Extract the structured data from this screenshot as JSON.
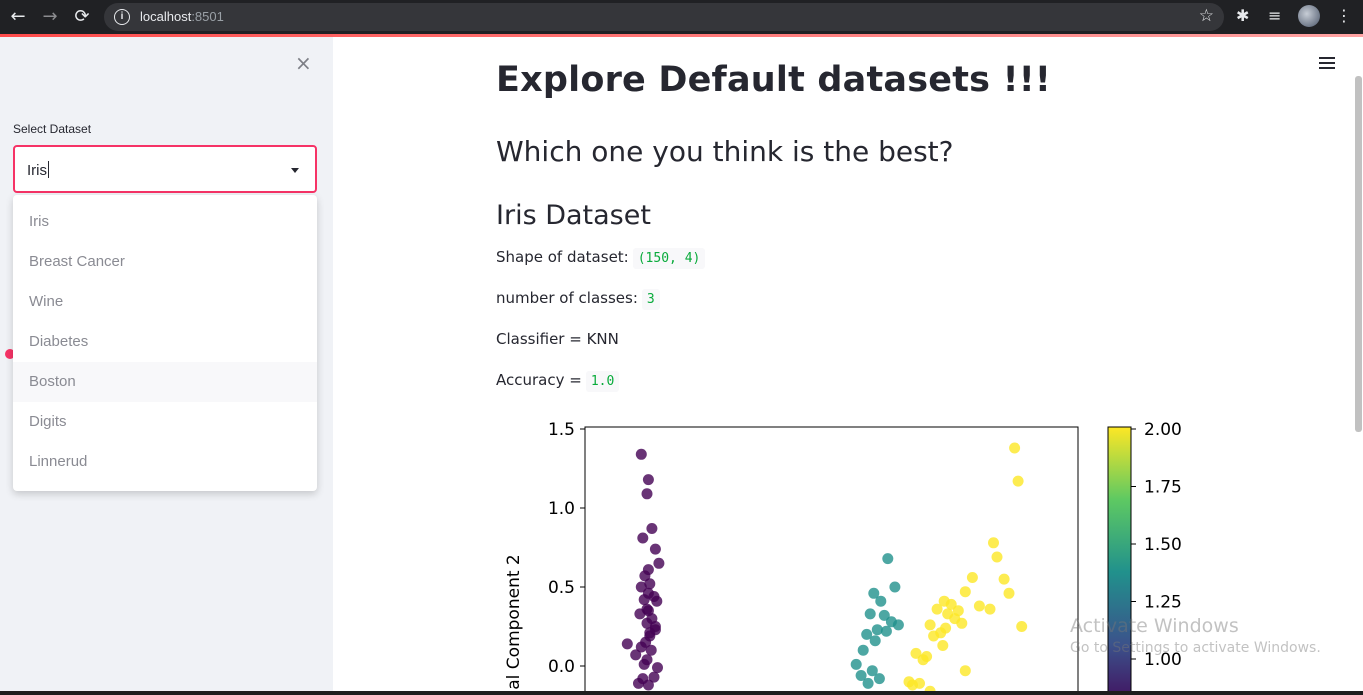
{
  "browser": {
    "url_host": "localhost",
    "url_port": ":8501"
  },
  "sidebar": {
    "close_label": "×",
    "select_label": "Select Dataset",
    "select_value": "Iris",
    "options": [
      "Iris",
      "Breast Cancer",
      "Wine",
      "Diabetes",
      "Boston",
      "Digits",
      "Linnerud"
    ]
  },
  "main": {
    "title": "Explore Default datasets !!!",
    "subtitle": "Which one you think is the best?",
    "dataset_header": "Iris Dataset",
    "shape_label": "Shape of dataset:",
    "shape_value": "(150, 4)",
    "classes_label": "number of classes:",
    "classes_value": "3",
    "classifier_text": "Classifier = KNN",
    "accuracy_label": "Accuracy =",
    "accuracy_value": "1.0"
  },
  "chart_data": {
    "type": "scatter",
    "ylabel": "al Component 2",
    "yticks": [
      "1.5",
      "1.0",
      "0.5",
      "0.0"
    ],
    "ylim": [
      -0.2,
      1.5
    ],
    "colorbar_ticks": [
      "2.00",
      "1.75",
      "1.50",
      "1.25",
      "1.00"
    ],
    "colorbar_range": [
      0,
      2
    ],
    "colormap": "viridis",
    "colors": {
      "class0": "#440154",
      "class1": "#21918c",
      "class2": "#fde725"
    },
    "series": [
      {
        "class": 0,
        "x": [
          -2.7,
          -2.6,
          -2.62,
          -2.55,
          -2.68,
          -2.5,
          -2.45,
          -2.6,
          -2.65,
          -2.58,
          -2.7,
          -2.52,
          -2.66,
          -2.72,
          -2.48,
          -2.6,
          -2.55,
          -2.62,
          -2.5,
          -2.58,
          -2.64,
          -2.7,
          -2.56,
          -2.9,
          -2.78,
          -2.62,
          -2.47,
          -2.68,
          -2.6,
          -2.52,
          -2.66,
          -2.74,
          -2.58,
          -2.62,
          -2.5,
          -2.6
        ],
        "y": [
          1.34,
          1.18,
          1.09,
          0.87,
          0.81,
          0.74,
          0.65,
          0.61,
          0.57,
          0.52,
          0.5,
          0.44,
          0.42,
          0.33,
          0.41,
          0.35,
          0.3,
          0.27,
          0.23,
          0.19,
          0.15,
          0.12,
          0.1,
          0.14,
          0.07,
          0.04,
          -0.01,
          -0.08,
          -0.12,
          -0.07,
          0.01,
          -0.11,
          0.21,
          0.36,
          0.25,
          0.46
        ]
      },
      {
        "class": 1,
        "x": [
          0.8,
          0.6,
          0.9,
          0.7,
          0.75,
          0.55,
          0.65,
          0.95,
          0.85,
          0.5,
          0.62,
          0.78,
          0.45,
          0.35,
          0.42,
          0.52,
          0.58,
          0.68
        ],
        "y": [
          0.68,
          0.46,
          0.5,
          0.41,
          0.32,
          0.33,
          0.23,
          0.26,
          0.28,
          0.2,
          0.16,
          0.22,
          0.1,
          0.01,
          -0.06,
          -0.11,
          -0.03,
          -0.08
        ]
      },
      {
        "class": 2,
        "x": [
          2.6,
          2.65,
          2.3,
          2.35,
          2.45,
          2.52,
          2.0,
          2.1,
          1.9,
          1.6,
          1.4,
          1.5,
          1.7,
          1.8,
          1.65,
          1.55,
          1.75,
          1.85,
          1.45,
          1.35,
          2.25,
          2.7,
          1.62,
          1.58,
          1.9,
          1.3,
          1.2,
          1.1,
          1.15,
          1.25,
          1.4
        ],
        "y": [
          1.38,
          1.17,
          0.78,
          0.69,
          0.55,
          0.46,
          0.56,
          0.38,
          0.47,
          0.41,
          0.26,
          0.36,
          0.39,
          0.35,
          0.33,
          0.21,
          0.3,
          0.27,
          0.19,
          0.06,
          0.36,
          0.25,
          0.24,
          0.13,
          -0.03,
          0.04,
          0.08,
          -0.1,
          -0.12,
          -0.11,
          -0.16
        ]
      }
    ]
  }
}
